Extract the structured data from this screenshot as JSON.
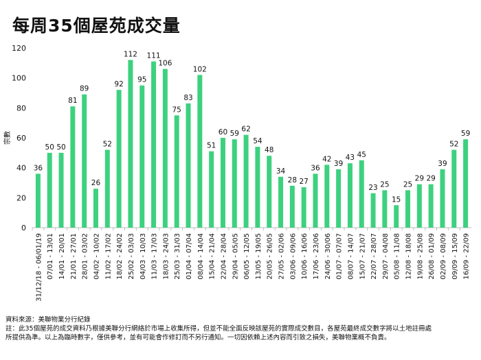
{
  "chart_data": {
    "type": "bar",
    "title": "每周35個屋苑成交量",
    "ylabel": "宗數",
    "xlabel": "",
    "ylim": [
      0,
      120
    ],
    "yticks": [
      0,
      20,
      40,
      60,
      80,
      100,
      120
    ],
    "grid": false,
    "bar_color": "#3dd17f",
    "categories": [
      "31/12/18 - 06/01/19",
      "07/01 - 13/01",
      "14/01 - 20/01",
      "21/01 - 27/01",
      "28/01 - 03/02",
      "04/02 - 10/02",
      "11/02 - 17/02",
      "18/02 - 24/02",
      "25/02 - 03/03",
      "04/03 - 10/03",
      "11/03 - 17/03",
      "18/03 - 24/03",
      "25/03 - 31/03",
      "01/04 - 07/04",
      "08/04 - 14/04",
      "15/04 - 21/04",
      "22/04 - 28/04",
      "29/04 - 05/05",
      "06/05 - 12/05",
      "13/05 - 19/05",
      "20/05 - 26/05",
      "27/05 - 02/06",
      "03/06 - 09/06",
      "10/06 - 16/06",
      "17/06 - 23/06",
      "24/06 - 30/06",
      "01/07 - 07/07",
      "08/07 - 14/07",
      "15/07 - 21/07",
      "22/07 - 28/07",
      "29/07 - 04/08",
      "05/08 - 11/08",
      "12/08 - 18/08",
      "19/08 - 25/08",
      "26/08 - 01/09",
      "02/09 - 08/09",
      "09/09 - 15/09",
      "16/09 - 22/09"
    ],
    "values": [
      36,
      50,
      50,
      81,
      89,
      26,
      52,
      92,
      112,
      95,
      111,
      106,
      75,
      83,
      102,
      51,
      60,
      59,
      62,
      54,
      48,
      34,
      28,
      27,
      36,
      42,
      39,
      43,
      45,
      23,
      25,
      15,
      25,
      29,
      29,
      39,
      52,
      59
    ]
  },
  "footer": {
    "source": "資料來源：美聯物業分行紀錄",
    "note1": "註：此35個屋苑的成交資料乃根據美聯分行網絡於市場上收集所得，但並不能全面反映該屋苑的實際成交數目，各屋苑最終成交數字將以土地註冊處",
    "note2": "所提供為準。以上為臨時數字，僅供參考，並有可能會作修訂而不另行通知。一切因依賴上述內容而引致之損失，美聯物業概不負責。"
  }
}
